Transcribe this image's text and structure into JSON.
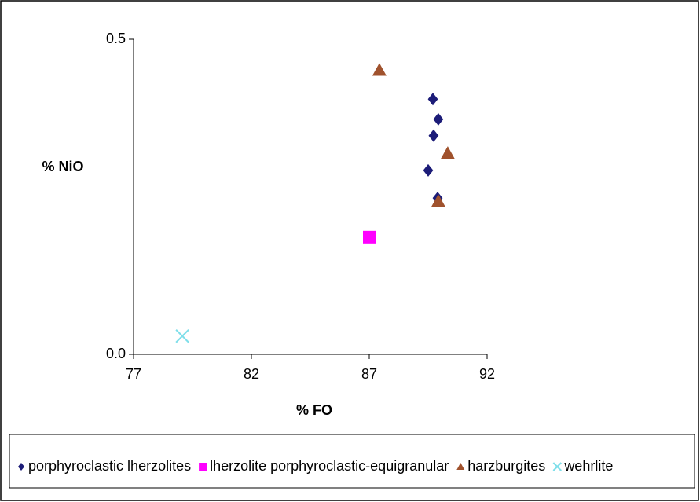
{
  "chart_data": {
    "type": "scatter",
    "x_label": "% FO",
    "y_label": "% NiO",
    "xlim": [
      77,
      92
    ],
    "xticks": [
      77,
      82,
      87,
      92
    ],
    "ylim": [
      0,
      0.5
    ],
    "yticks": [
      {
        "value": 0,
        "label": "0.0"
      },
      0.5
    ],
    "legend": "bottom",
    "series": [
      {
        "name": "porphyroclastic lherzolites",
        "color": "#1c1c78",
        "marker": "diamond",
        "x": [
          89.7,
          89.93,
          89.73,
          89.5,
          89.9
        ],
        "values": [
          0.405,
          0.373,
          0.347,
          0.292,
          0.248
        ]
      },
      {
        "name": "lherzolite porphyroclastic-equigranular",
        "color": "#ff00ff",
        "marker": "square",
        "x": [
          87.0
        ],
        "values": [
          0.186
        ]
      },
      {
        "name": "harzburgites",
        "color": "#a0522d",
        "marker": "triangle",
        "x": [
          87.43,
          90.33,
          89.93
        ],
        "values": [
          0.451,
          0.319,
          0.243
        ]
      },
      {
        "name": "wehrlite",
        "color": "#7fdfea",
        "marker": "cross",
        "x": [
          79.07
        ],
        "values": [
          0.029
        ]
      }
    ]
  }
}
